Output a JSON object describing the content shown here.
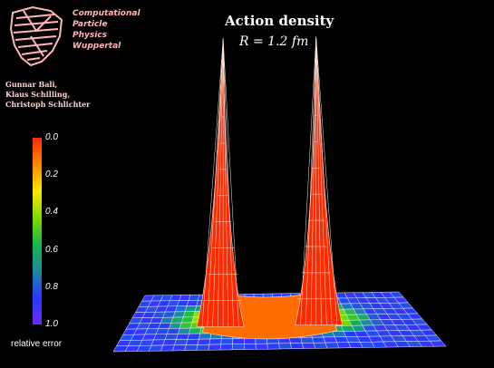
{
  "header": {
    "group_line1": "Computational",
    "group_line2": "Particle",
    "group_line3": "Physics",
    "group_line4": "Wuppertal",
    "authors_line1": "Gunnar Bali,",
    "authors_line2": "Klaus Schilling,",
    "authors_line3": "Christoph Schlichter"
  },
  "colorbar": {
    "label": "relative error",
    "ticks": [
      "0.0",
      "0.2",
      "0.4",
      "0.6",
      "0.8",
      "1.0"
    ],
    "colors": [
      "#ff2a00",
      "#ff8a00",
      "#ffe600",
      "#7ddc00",
      "#18b84a",
      "#1a8aa0",
      "#2838ff",
      "#6a2cff"
    ]
  },
  "chart_data": {
    "type": "surface",
    "title": "Action density",
    "subtitle": "R = 1.2 fm",
    "peaks": [
      {
        "relative_error": 0.0,
        "relative_height": 1.0
      },
      {
        "relative_error": 0.0,
        "relative_height": 1.0
      }
    ],
    "flux_tube_relative_error": 0.1,
    "background_relative_error": 0.85
  }
}
